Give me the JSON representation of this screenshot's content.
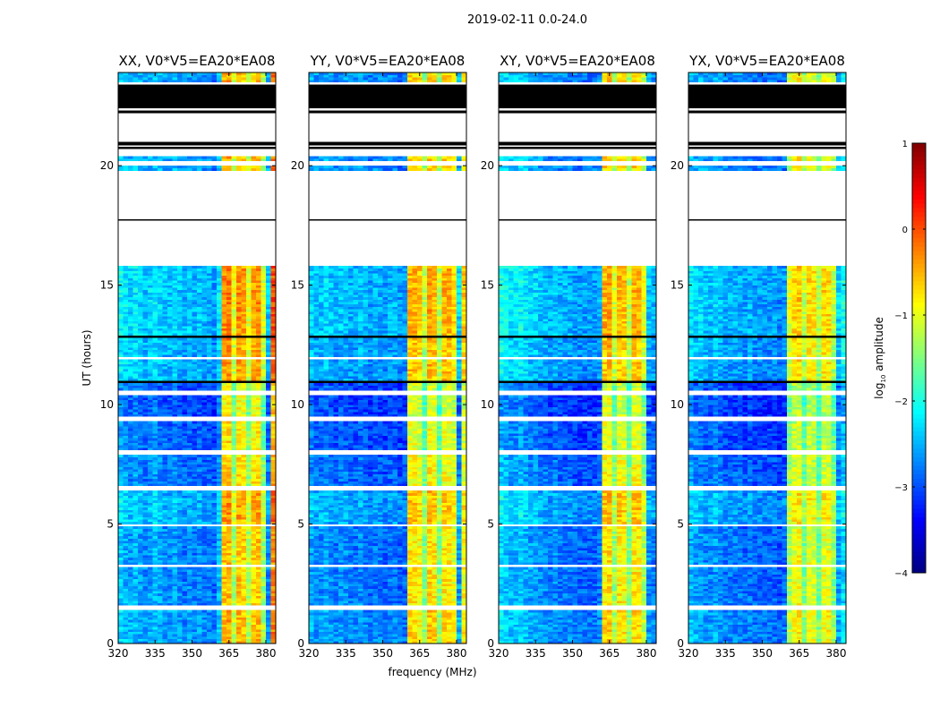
{
  "chart_data": {
    "type": "heatmap",
    "title": "2019-02-11 0.0-24.0",
    "xlabel": "frequency (MHz)",
    "ylabel": "UT (hours)",
    "xlim": [
      320,
      384
    ],
    "ylim": [
      0,
      23.9
    ],
    "xticks": [
      320,
      335,
      350,
      365,
      380
    ],
    "yticks": [
      0,
      5,
      10,
      15,
      20
    ],
    "colorbar": {
      "label_main": "log",
      "label_sub": "10",
      "label_rest": " amplitude",
      "range": [
        -4,
        1
      ],
      "ticks": [
        1,
        0,
        -1,
        -2,
        -3,
        -4
      ],
      "tick_labels": [
        "1",
        "0",
        "−1",
        "−2",
        "−3",
        "−4"
      ],
      "colormap": "jet"
    },
    "freq_bins_mhz": [
      320,
      322,
      324,
      326,
      328,
      330,
      332,
      334,
      336,
      338,
      340,
      342,
      344,
      346,
      348,
      350,
      352,
      354,
      356,
      358,
      360,
      362,
      364,
      366,
      368,
      370,
      372,
      374,
      376,
      378,
      380,
      382
    ],
    "time_blocks": [
      {
        "start": 0.0,
        "end": 1.4,
        "status": "data",
        "offset": 0.1
      },
      {
        "start": 1.4,
        "end": 1.6,
        "status": "gap"
      },
      {
        "start": 1.6,
        "end": 3.2,
        "status": "data",
        "offset": 0.0
      },
      {
        "start": 3.2,
        "end": 3.3,
        "status": "gap"
      },
      {
        "start": 3.3,
        "end": 4.9,
        "status": "data",
        "offset": 0.0
      },
      {
        "start": 4.9,
        "end": 5.0,
        "status": "gap"
      },
      {
        "start": 5.0,
        "end": 6.4,
        "status": "data",
        "offset": 0.2
      },
      {
        "start": 6.4,
        "end": 6.6,
        "status": "gap"
      },
      {
        "start": 6.6,
        "end": 7.9,
        "status": "data",
        "offset": -0.1
      },
      {
        "start": 7.9,
        "end": 8.1,
        "status": "gap"
      },
      {
        "start": 8.1,
        "end": 9.3,
        "status": "data",
        "offset": -0.2
      },
      {
        "start": 9.3,
        "end": 9.5,
        "status": "gap"
      },
      {
        "start": 9.5,
        "end": 10.4,
        "status": "data",
        "offset": -0.3
      },
      {
        "start": 10.4,
        "end": 10.6,
        "status": "gap"
      },
      {
        "start": 10.6,
        "end": 10.9,
        "status": "data",
        "offset": -0.3
      },
      {
        "start": 10.9,
        "end": 11.0,
        "status": "flagged"
      },
      {
        "start": 11.0,
        "end": 11.9,
        "status": "data",
        "offset": 0.2
      },
      {
        "start": 11.9,
        "end": 12.0,
        "status": "gap"
      },
      {
        "start": 12.0,
        "end": 12.8,
        "status": "data",
        "offset": 0.2
      },
      {
        "start": 12.8,
        "end": 12.9,
        "status": "flagged"
      },
      {
        "start": 12.9,
        "end": 15.8,
        "status": "data",
        "offset": 0.3
      },
      {
        "start": 15.8,
        "end": 17.7,
        "status": "gap"
      },
      {
        "start": 17.7,
        "end": 17.75,
        "status": "flagged"
      },
      {
        "start": 17.75,
        "end": 19.8,
        "status": "gap"
      },
      {
        "start": 19.8,
        "end": 20.0,
        "status": "data",
        "offset": 0.1
      },
      {
        "start": 20.0,
        "end": 20.2,
        "status": "gap"
      },
      {
        "start": 20.2,
        "end": 20.4,
        "status": "data",
        "offset": 0.1
      },
      {
        "start": 20.4,
        "end": 20.7,
        "status": "gap"
      },
      {
        "start": 20.7,
        "end": 20.8,
        "status": "flagged"
      },
      {
        "start": 20.8,
        "end": 20.85,
        "status": "gap"
      },
      {
        "start": 20.85,
        "end": 21.0,
        "status": "flagged"
      },
      {
        "start": 21.0,
        "end": 22.2,
        "status": "gap"
      },
      {
        "start": 22.2,
        "end": 22.3,
        "status": "flagged"
      },
      {
        "start": 22.3,
        "end": 22.4,
        "status": "gap"
      },
      {
        "start": 22.4,
        "end": 23.4,
        "status": "flagged"
      },
      {
        "start": 23.4,
        "end": 23.5,
        "status": "gap"
      },
      {
        "start": 23.5,
        "end": 23.9,
        "status": "data",
        "offset": 0.1
      }
    ],
    "panels": [
      {
        "title": "XX, V0*V5=EA20*EA08",
        "profile": [
          -2.4,
          -2.5,
          -2.6,
          -2.5,
          -2.6,
          -2.7,
          -2.6,
          -2.5,
          -2.6,
          -2.7,
          -2.7,
          -2.6,
          -2.7,
          -2.8,
          -2.7,
          -2.8,
          -2.7,
          -2.8,
          -2.8,
          -2.9,
          -2.5,
          -0.6,
          -0.5,
          -1.3,
          -0.6,
          -0.7,
          -1.3,
          -0.7,
          -0.6,
          -1.4,
          -2.7,
          -0.3
        ]
      },
      {
        "title": "YY, V0*V5=EA20*EA08",
        "profile": [
          -2.6,
          -2.7,
          -2.7,
          -2.6,
          -2.7,
          -2.8,
          -2.7,
          -2.7,
          -2.8,
          -2.8,
          -2.7,
          -2.8,
          -2.9,
          -2.8,
          -2.8,
          -2.9,
          -2.8,
          -2.8,
          -2.9,
          -2.9,
          -0.8,
          -0.8,
          -0.9,
          -1.5,
          -0.7,
          -0.8,
          -1.5,
          -0.8,
          -0.8,
          -1.0,
          -2.6,
          -0.9
        ]
      },
      {
        "title": "XY, V0*V5=EA20*EA08",
        "profile": [
          -2.3,
          -2.4,
          -2.5,
          -2.5,
          -2.4,
          -2.5,
          -2.6,
          -2.6,
          -2.7,
          -2.7,
          -2.8,
          -2.7,
          -2.8,
          -2.8,
          -2.8,
          -2.9,
          -2.9,
          -2.9,
          -2.9,
          -2.9,
          -2.8,
          -0.8,
          -0.7,
          -1.4,
          -0.8,
          -0.9,
          -1.5,
          -0.8,
          -0.8,
          -1.3,
          -2.7,
          -2.8
        ]
      },
      {
        "title": "YX, V0*V5=EA20*EA08",
        "profile": [
          -2.5,
          -2.6,
          -2.6,
          -2.7,
          -2.7,
          -2.6,
          -2.7,
          -2.8,
          -2.8,
          -2.8,
          -2.8,
          -2.9,
          -2.8,
          -2.9,
          -2.9,
          -2.9,
          -2.9,
          -2.9,
          -3.0,
          -2.9,
          -1.3,
          -1.0,
          -0.9,
          -1.5,
          -1.0,
          -1.1,
          -1.6,
          -1.0,
          -1.0,
          -1.5,
          -2.6,
          -2.3
        ]
      }
    ]
  }
}
